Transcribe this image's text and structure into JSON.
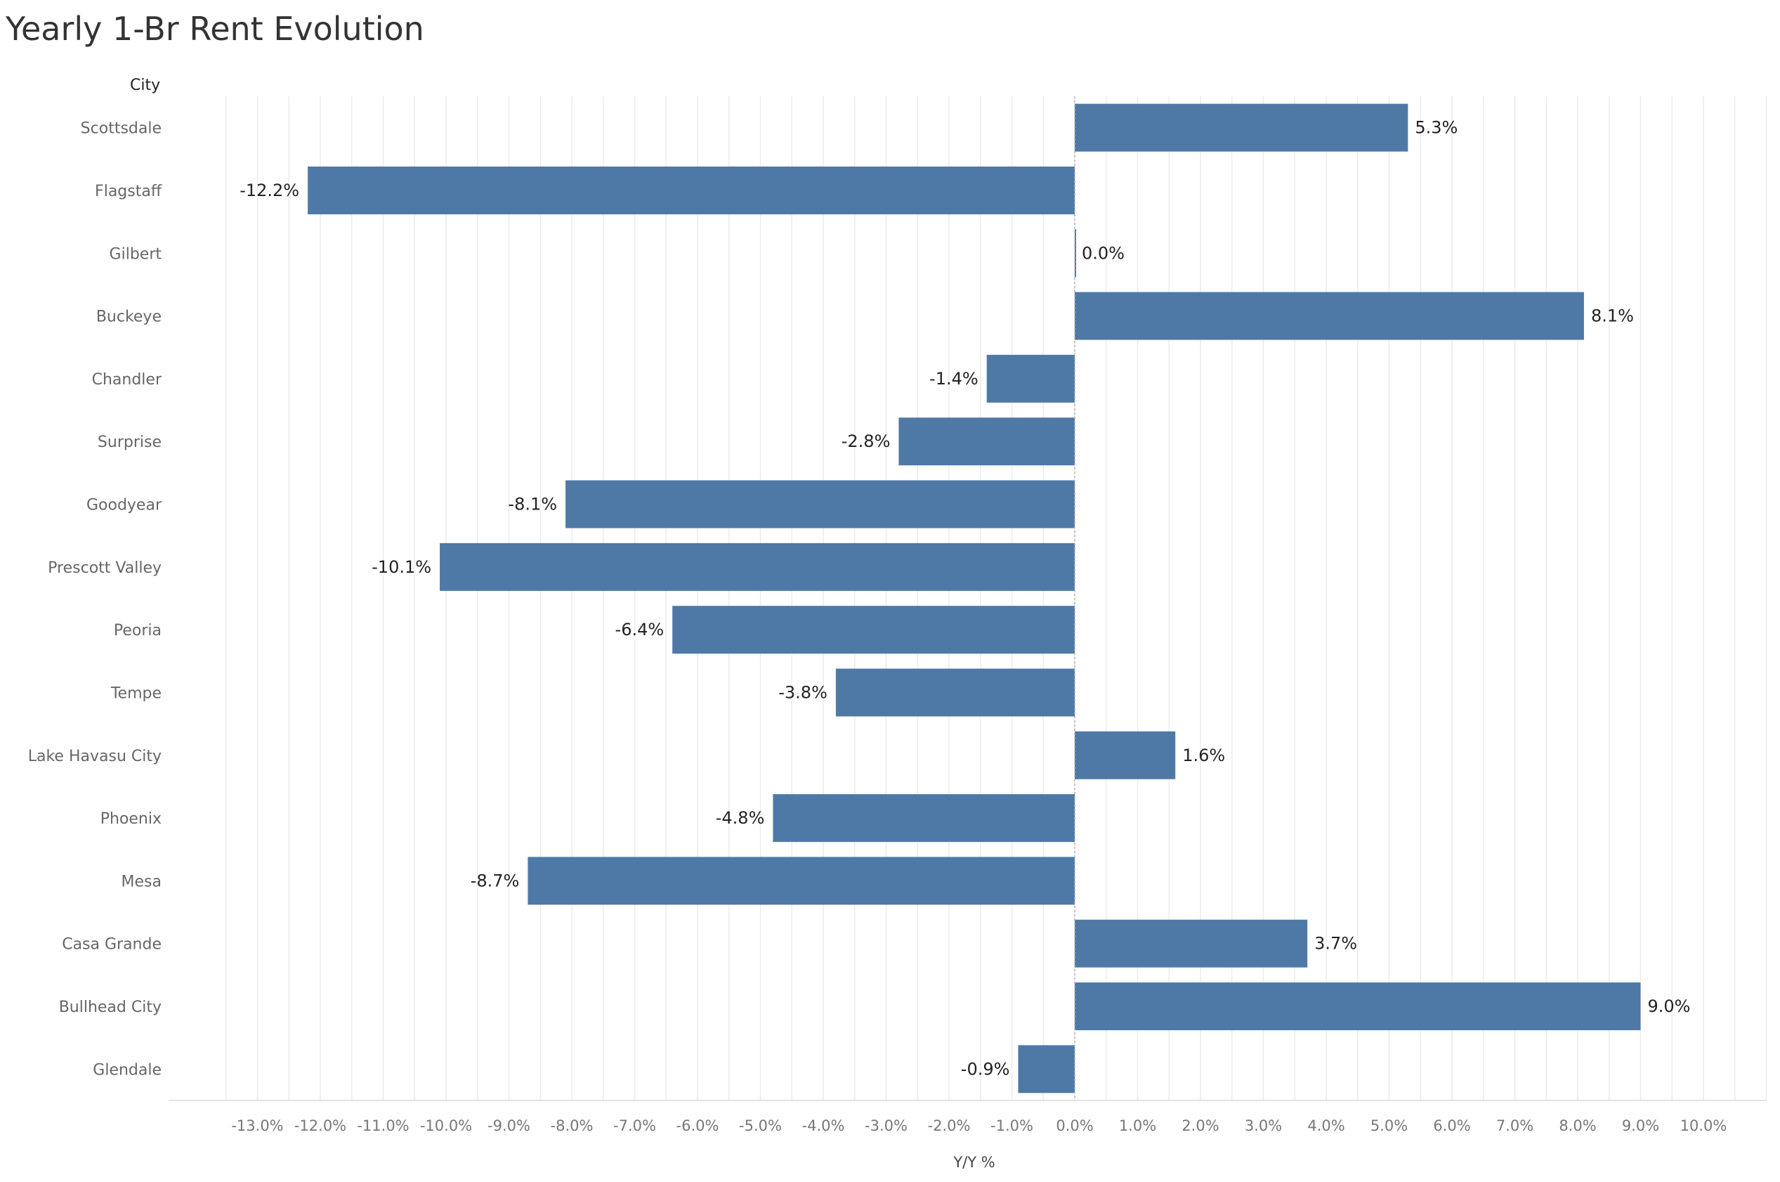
{
  "chart_data": {
    "type": "bar",
    "orientation": "horizontal",
    "title": "Yearly 1-Br Rent Evolution",
    "row_header": "City",
    "xlabel": "Y/Y %",
    "xlim": [
      -13.5,
      11
    ],
    "x_ticks": [
      -13,
      -12,
      -11,
      -10,
      -9,
      -8,
      -7,
      -6,
      -5,
      -4,
      -3,
      -2,
      -1,
      0,
      1,
      2,
      3,
      4,
      5,
      6,
      7,
      8,
      9,
      10
    ],
    "tick_suffix": ".0%",
    "value_suffix": "%",
    "grid": true,
    "color": "#4e79a7",
    "categories": [
      "Scottsdale",
      "Flagstaff",
      "Gilbert",
      "Buckeye",
      "Chandler",
      "Surprise",
      "Goodyear",
      "Prescott Valley",
      "Peoria",
      "Tempe",
      "Lake Havasu City",
      "Phoenix",
      "Mesa",
      "Casa Grande",
      "Bullhead City",
      "Glendale"
    ],
    "values": [
      5.3,
      -12.2,
      0.0,
      8.1,
      -1.4,
      -2.8,
      -8.1,
      -10.1,
      -6.4,
      -3.8,
      1.6,
      -4.8,
      -8.7,
      3.7,
      9.0,
      -0.9
    ]
  }
}
